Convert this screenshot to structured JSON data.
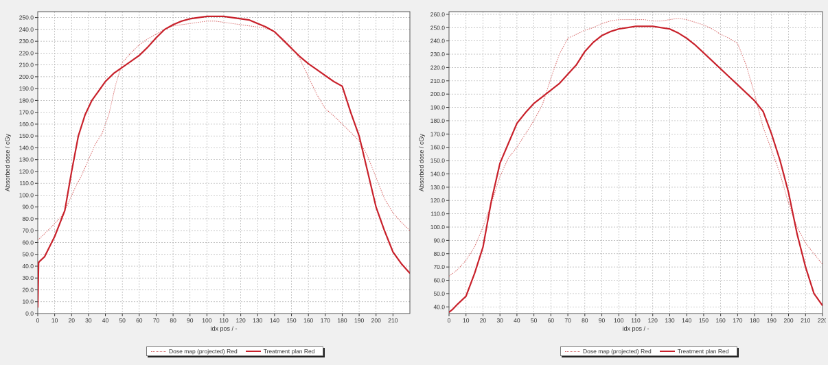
{
  "chart_data": [
    {
      "type": "line",
      "xlabel": "idx pos / -",
      "ylabel": "Absorbed dose / cGy",
      "xlim": [
        0,
        220
      ],
      "ylim": [
        0,
        255
      ],
      "xticks": [
        0,
        10,
        20,
        30,
        40,
        50,
        60,
        70,
        80,
        90,
        100,
        110,
        120,
        130,
        140,
        150,
        160,
        170,
        180,
        190,
        200,
        210
      ],
      "yticks": [
        0,
        10,
        20,
        30,
        40,
        50,
        60,
        70,
        80,
        90,
        100,
        110,
        120,
        130,
        140,
        150,
        160,
        170,
        180,
        190,
        200,
        210,
        220,
        230,
        240,
        250
      ],
      "grid": true,
      "legend_position": "bottom-center",
      "series": [
        {
          "name": "Dose map (projected) Red",
          "style": "dotted",
          "color": "#d86a6a",
          "x": [
            0,
            3,
            8,
            14,
            18,
            22,
            26,
            30,
            34,
            38,
            42,
            46,
            50,
            55,
            60,
            65,
            70,
            75,
            80,
            85,
            90,
            95,
            100,
            105,
            110,
            115,
            120,
            125,
            130,
            135,
            140,
            145,
            150,
            155,
            160,
            165,
            170,
            175,
            180,
            185,
            190,
            195,
            200,
            205,
            210,
            215,
            220
          ],
          "y": [
            62,
            66,
            73,
            82,
            93,
            106,
            117,
            130,
            143,
            152,
            168,
            193,
            212,
            220,
            227,
            232,
            236,
            240,
            243,
            244,
            245,
            246,
            247,
            247,
            246,
            245,
            244,
            243,
            242,
            241,
            238,
            232,
            225,
            215,
            200,
            185,
            173,
            167,
            160,
            153,
            146,
            133,
            115,
            97,
            85,
            77,
            70
          ]
        },
        {
          "name": "Treatment plan Red",
          "style": "solid",
          "color": "#c8202a",
          "x": [
            0,
            0.5,
            1,
            4,
            10,
            16,
            20,
            24,
            28,
            32,
            36,
            40,
            45,
            50,
            55,
            60,
            65,
            70,
            75,
            80,
            85,
            90,
            95,
            100,
            105,
            110,
            115,
            120,
            125,
            130,
            135,
            140,
            145,
            150,
            155,
            160,
            165,
            170,
            175,
            180,
            185,
            190,
            195,
            200,
            205,
            210,
            215,
            220
          ],
          "y": [
            5,
            43,
            44,
            48,
            65,
            87,
            120,
            150,
            168,
            180,
            188,
            196,
            203,
            208,
            213,
            218,
            225,
            233,
            240,
            244,
            247,
            249,
            250,
            251,
            251,
            251,
            250,
            249,
            248,
            245,
            242,
            238,
            231,
            224,
            217,
            211,
            206,
            201,
            196,
            192,
            170,
            150,
            120,
            90,
            70,
            52,
            42,
            34
          ]
        }
      ]
    },
    {
      "type": "line",
      "xlabel": "idx pos / -",
      "ylabel": "Absorbed dose / cGy",
      "xlim": [
        0,
        220
      ],
      "ylim": [
        35,
        262
      ],
      "xticks": [
        0,
        10,
        20,
        30,
        40,
        50,
        60,
        70,
        80,
        90,
        100,
        110,
        120,
        130,
        140,
        150,
        160,
        170,
        180,
        190,
        200,
        210,
        220
      ],
      "yticks": [
        40,
        50,
        60,
        70,
        80,
        90,
        100,
        110,
        120,
        130,
        140,
        150,
        160,
        170,
        180,
        190,
        200,
        210,
        220,
        230,
        240,
        250,
        260
      ],
      "grid": true,
      "legend_position": "bottom-center",
      "series": [
        {
          "name": "Dose map (projected) Red",
          "style": "dotted",
          "color": "#d86a6a",
          "x": [
            0,
            5,
            10,
            15,
            20,
            25,
            30,
            35,
            40,
            45,
            50,
            55,
            60,
            65,
            70,
            75,
            80,
            85,
            90,
            95,
            100,
            105,
            110,
            115,
            120,
            125,
            130,
            135,
            140,
            145,
            150,
            155,
            160,
            165,
            170,
            175,
            180,
            185,
            190,
            195,
            200,
            205,
            210,
            215,
            220
          ],
          "y": [
            63,
            68,
            75,
            85,
            100,
            118,
            138,
            152,
            160,
            170,
            180,
            192,
            212,
            230,
            242,
            245,
            248,
            250,
            253,
            255,
            256,
            256,
            256,
            256,
            255,
            255,
            256,
            257,
            256,
            254,
            252,
            249,
            245,
            242,
            238,
            222,
            200,
            175,
            158,
            140,
            118,
            100,
            88,
            80,
            72
          ]
        },
        {
          "name": "Treatment plan Red",
          "style": "solid",
          "color": "#c8202a",
          "x": [
            0,
            2,
            5,
            10,
            15,
            20,
            25,
            30,
            35,
            40,
            45,
            50,
            55,
            60,
            65,
            70,
            75,
            80,
            85,
            90,
            95,
            100,
            105,
            110,
            115,
            120,
            125,
            130,
            135,
            140,
            145,
            150,
            155,
            160,
            165,
            170,
            175,
            180,
            185,
            190,
            195,
            200,
            205,
            210,
            215,
            220
          ],
          "y": [
            36,
            38,
            42,
            48,
            65,
            85,
            120,
            148,
            163,
            178,
            186,
            193,
            198,
            203,
            208,
            215,
            222,
            232,
            239,
            244,
            247,
            249,
            250,
            251,
            251,
            251,
            250,
            249,
            246,
            242,
            237,
            231,
            225,
            219,
            213,
            207,
            201,
            195,
            187,
            170,
            150,
            126,
            95,
            70,
            50,
            41
          ]
        }
      ]
    }
  ],
  "legend": {
    "entry1": "Dose map (projected) Red",
    "entry2": "Treatment plan Red"
  },
  "colors": {
    "background": "#f0f0f0",
    "plot_background": "#ffffff",
    "grid": "#b0b0b0",
    "dose_map": "#d86a6a",
    "treatment_plan": "#c8202a"
  }
}
